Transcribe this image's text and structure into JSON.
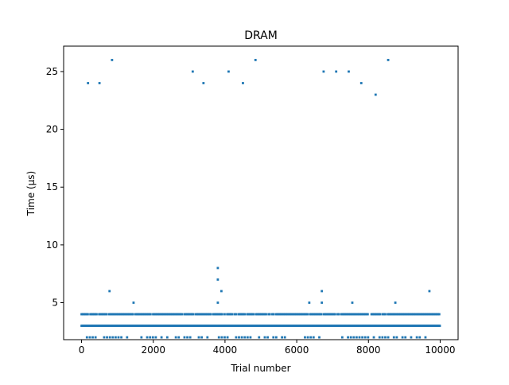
{
  "colors": {
    "marker": "#1f77b4",
    "axes": "#000000",
    "background": "#ffffff"
  },
  "chart_data": {
    "type": "scatter",
    "title": "DRAM",
    "xlabel": "Trial number",
    "ylabel": "Time (µs)",
    "xlim": [
      -500,
      10500
    ],
    "ylim": [
      1.8,
      27.2
    ],
    "xticks": [
      0,
      2000,
      4000,
      6000,
      8000,
      10000
    ],
    "xtick_labels": [
      "0",
      "2000",
      "4000",
      "6000",
      "8000",
      "10000"
    ],
    "yticks": [
      5,
      10,
      15,
      20,
      25
    ],
    "ytick_labels": [
      "5",
      "10",
      "15",
      "20",
      "25"
    ],
    "grid": false,
    "legend": "none",
    "marker_size": "small-square",
    "series": [
      {
        "segments": [
          {
            "x_range": [
              0,
              10000
            ],
            "y": 3,
            "density": "continuous"
          },
          {
            "x_range": [
              0,
              10000
            ],
            "y": 4,
            "density": "dense"
          },
          {
            "x_range": [
              150,
              9800
            ],
            "y": 2,
            "density": "sparse"
          }
        ],
        "points": [
          {
            "x": 180,
            "y": 24
          },
          {
            "x": 500,
            "y": 24
          },
          {
            "x": 850,
            "y": 26
          },
          {
            "x": 3100,
            "y": 25
          },
          {
            "x": 3400,
            "y": 24
          },
          {
            "x": 4100,
            "y": 25
          },
          {
            "x": 4500,
            "y": 24
          },
          {
            "x": 4850,
            "y": 26
          },
          {
            "x": 6750,
            "y": 25
          },
          {
            "x": 7100,
            "y": 25
          },
          {
            "x": 7450,
            "y": 25
          },
          {
            "x": 7800,
            "y": 24
          },
          {
            "x": 8200,
            "y": 23
          },
          {
            "x": 8550,
            "y": 26
          },
          {
            "x": 3800,
            "y": 8
          },
          {
            "x": 3800,
            "y": 7
          },
          {
            "x": 3900,
            "y": 6
          },
          {
            "x": 3800,
            "y": 5
          },
          {
            "x": 780,
            "y": 6
          },
          {
            "x": 1450,
            "y": 5
          },
          {
            "x": 6350,
            "y": 5
          },
          {
            "x": 6700,
            "y": 6
          },
          {
            "x": 6700,
            "y": 5
          },
          {
            "x": 7550,
            "y": 5
          },
          {
            "x": 8750,
            "y": 5
          },
          {
            "x": 9700,
            "y": 6
          }
        ]
      }
    ]
  }
}
